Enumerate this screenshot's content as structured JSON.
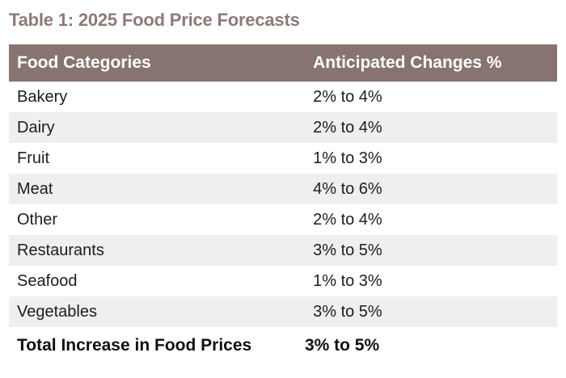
{
  "page_title": "Table 1: 2025 Food Price Forecasts",
  "colors": {
    "title_text": "#8d7a78",
    "header_bg": "#877471",
    "header_text": "#ffffff",
    "row_bg": "#ffffff",
    "row_alt_bg": "#f0efee",
    "body_text": "#1d1d1d",
    "total_text": "#111111"
  },
  "chart_data": {
    "type": "table",
    "title": "Table 1: 2025 Food Price Forecasts",
    "columns": [
      "Food Categories",
      "Anticipated Changes %"
    ],
    "rows": [
      [
        "Bakery",
        "2% to 4%"
      ],
      [
        "Dairy",
        "2% to 4%"
      ],
      [
        "Fruit",
        "1% to 3%"
      ],
      [
        "Meat",
        "4% to 6%"
      ],
      [
        "Other",
        "2% to 4%"
      ],
      [
        "Restaurants",
        "3% to 5%"
      ],
      [
        "Seafood",
        "1% to 3%"
      ],
      [
        "Vegetables",
        "3% to 5%"
      ]
    ],
    "total_row": [
      "Total Increase in Food Prices",
      "3% to 5%"
    ],
    "layout": {
      "zebra_striping": true,
      "first_data_row_bg": "white",
      "header_style": "solid taupe bar with white bold text"
    }
  }
}
